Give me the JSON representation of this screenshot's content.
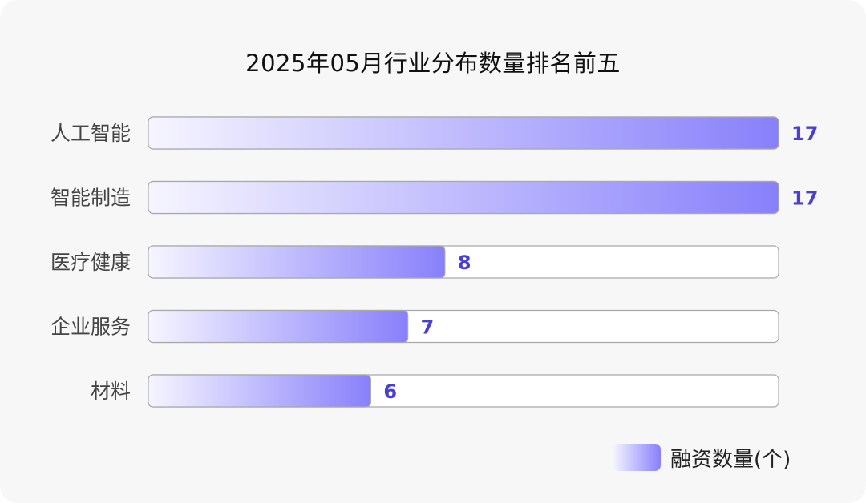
{
  "chart_data": {
    "type": "bar",
    "orientation": "horizontal",
    "title": "2025年05月行业分布数量排名前五",
    "categories": [
      "人工智能",
      "智能制造",
      "医疗健康",
      "企业服务",
      "材料"
    ],
    "series": [
      {
        "name": "融资数量(个)",
        "values": [
          17,
          17,
          8,
          7,
          6
        ]
      }
    ],
    "xlim": [
      0,
      17
    ],
    "grid": false,
    "legend_position": "bottom-right",
    "data_labels": true
  },
  "colors": {
    "bar_start": "#f6f5ff",
    "bar_end": "#8880fb",
    "track_border": "#a9a9ad",
    "track_fill": "#ffffff",
    "value_label": "#4a3fcf",
    "category_label": "#444444"
  }
}
